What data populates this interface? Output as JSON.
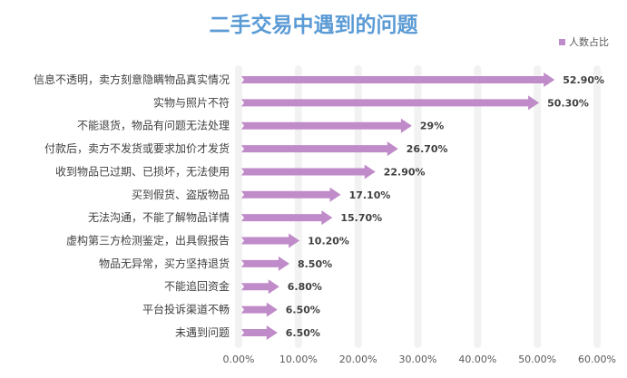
{
  "chart_data": {
    "type": "bar",
    "orientation": "horizontal",
    "title": "二手交易中遇到的问题",
    "categories": [
      "信息不透明，卖方刻意隐瞒物品真实情况",
      "实物与照片不符",
      "不能退货，物品有问题无法处理",
      "付款后，卖方不发货或要求加价才发货",
      "收到物品已过期、已损坏，无法使用",
      "买到假货、盗版物品",
      "无法沟通，不能了解物品详情",
      "虚构第三方检测鉴定，出具假报告",
      "物品无异常，买方坚持退货",
      "不能追回资金",
      "平台投诉渠道不畅",
      "未遇到问题"
    ],
    "series": [
      {
        "name": "人数占比",
        "values": [
          52.9,
          50.3,
          29,
          26.7,
          22.9,
          17.1,
          15.7,
          10.2,
          8.5,
          6.8,
          6.5,
          6.5
        ],
        "color": "#c08bc9"
      }
    ],
    "data_labels": [
      "52.90%",
      "50.30%",
      "29%",
      "26.70%",
      "22.90%",
      "17.10%",
      "15.70%",
      "10.20%",
      "8.50%",
      "6.80%",
      "6.50%",
      "6.50%"
    ],
    "xlim": [
      0,
      60
    ],
    "xticks": [
      "0.00%",
      "10.00%",
      "20.00%",
      "30.00%",
      "40.00%",
      "50.00%",
      "60.00%"
    ],
    "legend": "top-right",
    "grid": true,
    "title_color": "#5b9bd5"
  }
}
